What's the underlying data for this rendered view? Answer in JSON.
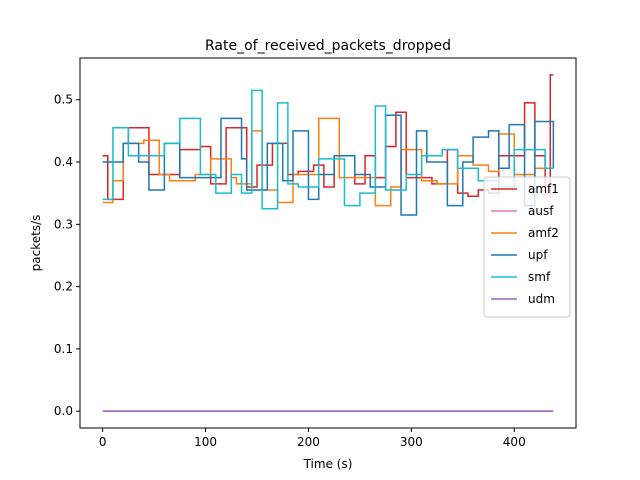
{
  "chart_data": {
    "type": "line",
    "title": "Rate_of_received_packets_dropped",
    "xlabel": "Time (s)",
    "ylabel": "packets/s",
    "xlim": [
      -22,
      460
    ],
    "ylim": [
      -0.027,
      0.567
    ],
    "xticks": [
      0,
      100,
      200,
      300,
      400
    ],
    "yticks": [
      0.0,
      0.1,
      0.2,
      0.3,
      0.4,
      0.5
    ],
    "ytick_labels": [
      "0.0",
      "0.1",
      "0.2",
      "0.3",
      "0.4",
      "0.5"
    ],
    "grid": false,
    "legend_position": "right",
    "series": [
      {
        "name": "amf1",
        "color": "#d62728",
        "step": true,
        "x": [
          0,
          5,
          20,
          25,
          45,
          60,
          75,
          85,
          95,
          105,
          120,
          140,
          150,
          165,
          180,
          190,
          205,
          215,
          225,
          245,
          255,
          265,
          275,
          285,
          295,
          305,
          320,
          335,
          345,
          355,
          365,
          375,
          385,
          395,
          410,
          420,
          430,
          435,
          438
        ],
        "values": [
          0.41,
          0.34,
          0.43,
          0.455,
          0.38,
          0.38,
          0.42,
          0.42,
          0.425,
          0.365,
          0.455,
          0.36,
          0.395,
          0.43,
          0.38,
          0.385,
          0.395,
          0.36,
          0.41,
          0.365,
          0.41,
          0.375,
          0.425,
          0.48,
          0.375,
          0.375,
          0.365,
          0.42,
          0.35,
          0.345,
          0.355,
          0.35,
          0.41,
          0.41,
          0.495,
          0.41,
          0.35,
          0.54,
          0.54
        ]
      },
      {
        "name": "ausf",
        "color": "#e377c2",
        "step": true,
        "x": [
          0,
          438
        ],
        "values": [
          0.0,
          0.0
        ]
      },
      {
        "name": "amf2",
        "color": "#ff7f0e",
        "step": true,
        "x": [
          0,
          10,
          20,
          40,
          55,
          65,
          90,
          105,
          125,
          130,
          145,
          155,
          170,
          185,
          210,
          230,
          265,
          280,
          290,
          310,
          325,
          345,
          360,
          375,
          385,
          400,
          420,
          438
        ],
        "values": [
          0.335,
          0.37,
          0.43,
          0.435,
          0.38,
          0.37,
          0.38,
          0.405,
          0.375,
          0.365,
          0.45,
          0.355,
          0.335,
          0.38,
          0.47,
          0.375,
          0.33,
          0.36,
          0.42,
          0.37,
          0.365,
          0.41,
          0.395,
          0.385,
          0.445,
          0.38,
          0.39,
          0.39
        ]
      },
      {
        "name": "upf",
        "color": "#1f77b4",
        "step": true,
        "x": [
          0,
          20,
          35,
          45,
          60,
          75,
          100,
          115,
          135,
          140,
          160,
          175,
          185,
          200,
          210,
          225,
          245,
          260,
          275,
          290,
          305,
          315,
          335,
          350,
          360,
          375,
          385,
          395,
          410,
          420,
          438
        ],
        "values": [
          0.4,
          0.43,
          0.4,
          0.355,
          0.43,
          0.375,
          0.375,
          0.47,
          0.405,
          0.355,
          0.43,
          0.37,
          0.45,
          0.34,
          0.38,
          0.41,
          0.38,
          0.36,
          0.475,
          0.315,
          0.45,
          0.4,
          0.33,
          0.4,
          0.44,
          0.45,
          0.39,
          0.46,
          0.33,
          0.465,
          0.39
        ]
      },
      {
        "name": "smf",
        "color": "#17becf",
        "step": true,
        "x": [
          0,
          10,
          25,
          45,
          60,
          75,
          95,
          110,
          125,
          135,
          145,
          155,
          170,
          180,
          190,
          210,
          235,
          250,
          265,
          275,
          295,
          310,
          330,
          345,
          365,
          385,
          400,
          410,
          420,
          430,
          438
        ],
        "values": [
          0.34,
          0.455,
          0.41,
          0.41,
          0.43,
          0.47,
          0.38,
          0.35,
          0.38,
          0.35,
          0.515,
          0.325,
          0.495,
          0.365,
          0.36,
          0.405,
          0.33,
          0.35,
          0.49,
          0.355,
          0.38,
          0.41,
          0.42,
          0.39,
          0.37,
          0.36,
          0.42,
          0.42,
          0.42,
          0.39,
          0.39
        ]
      },
      {
        "name": "udm",
        "color": "#9467bd",
        "step": true,
        "x": [
          0,
          438
        ],
        "values": [
          0.0,
          0.0
        ]
      }
    ]
  }
}
